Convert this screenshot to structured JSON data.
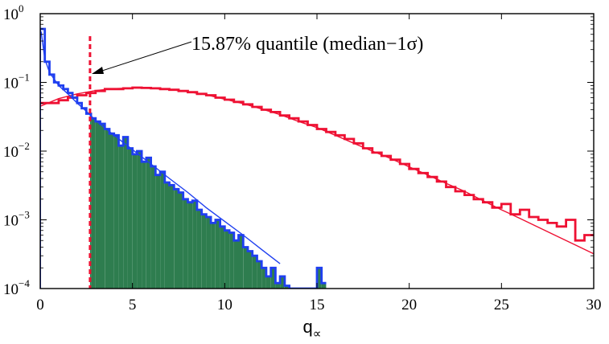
{
  "chart_data": {
    "type": "line",
    "title": "",
    "xlabel": "q",
    "xlabel_subscript": "∝",
    "ylabel": "",
    "xlim": [
      0,
      30
    ],
    "ylim": [
      0.0001,
      1
    ],
    "yscale": "log",
    "grid": false,
    "x_ticks": [
      0,
      5,
      10,
      15,
      20,
      25,
      30
    ],
    "x_tick_labels": [
      "0",
      "5",
      "10",
      "15",
      "20",
      "25",
      "30"
    ],
    "y_ticks": [
      0.0001,
      0.001,
      0.01,
      0.1,
      1
    ],
    "y_tick_labels": [
      {
        "base": "10",
        "exp": "−4"
      },
      {
        "base": "10",
        "exp": "−3"
      },
      {
        "base": "10",
        "exp": "−2"
      },
      {
        "base": "10",
        "exp": "−1"
      },
      {
        "base": "10",
        "exp": "0"
      }
    ],
    "colors": {
      "blue": "#1f3ff0",
      "red": "#ee1133",
      "fill": "#2e7d4f",
      "annotation": "#000000"
    },
    "quantile": {
      "x": 2.7,
      "label": "15.87% quantile (median−1σ)"
    },
    "series": [
      {
        "kind": "histogram",
        "color": "blue",
        "bin_width": 0.25,
        "x": [
          0.0,
          0.25,
          0.5,
          0.75,
          1.0,
          1.25,
          1.5,
          1.75,
          2.0,
          2.25,
          2.5,
          2.75,
          3.0,
          3.25,
          3.5,
          3.75,
          4.0,
          4.25,
          4.5,
          4.75,
          5.0,
          5.25,
          5.5,
          5.75,
          6.0,
          6.25,
          6.5,
          6.75,
          7.0,
          7.25,
          7.5,
          7.75,
          8.0,
          8.25,
          8.5,
          8.75,
          9.0,
          9.25,
          9.5,
          9.75,
          10.0,
          10.25,
          10.5,
          10.75,
          11.0,
          11.25,
          11.5,
          11.75,
          12.0,
          12.25,
          12.5,
          12.75,
          13.0,
          13.25,
          13.5,
          13.75,
          14.0,
          14.25,
          14.5,
          14.75,
          15.0,
          15.25
        ],
        "values": [
          0.6,
          0.2,
          0.13,
          0.1,
          0.09,
          0.08,
          0.07,
          0.06,
          0.05,
          0.042,
          0.035,
          0.03,
          0.027,
          0.025,
          0.021,
          0.018,
          0.017,
          0.012,
          0.016,
          0.011,
          0.009,
          0.01,
          0.007,
          0.008,
          0.006,
          0.0045,
          0.005,
          0.0035,
          0.0032,
          0.0028,
          0.0025,
          0.002,
          0.0018,
          0.0019,
          0.0014,
          0.0012,
          0.0011,
          0.0009,
          0.001,
          0.0008,
          0.0007,
          0.00065,
          0.0005,
          0.0006,
          0.0004,
          0.00035,
          0.0003,
          0.00025,
          0.0002,
          0.00015,
          0.0002,
          0.00012,
          0.00015,
          0.00011,
          0.0001,
          0.0001,
          0.0001,
          0.0001,
          0.0001,
          0.0001,
          0.0002,
          0.00012
        ]
      },
      {
        "kind": "histogram",
        "color": "red",
        "bin_width": 0.5,
        "x": [
          0.0,
          0.5,
          1.0,
          1.5,
          2.0,
          2.5,
          3.0,
          3.5,
          4.0,
          4.5,
          5.0,
          5.5,
          6.0,
          6.5,
          7.0,
          7.5,
          8.0,
          8.5,
          9.0,
          9.5,
          10.0,
          10.5,
          11.0,
          11.5,
          12.0,
          12.5,
          13.0,
          13.5,
          14.0,
          14.5,
          15.0,
          15.5,
          16.0,
          16.5,
          17.0,
          17.5,
          18.0,
          18.5,
          19.0,
          19.5,
          20.0,
          20.5,
          21.0,
          21.5,
          22.0,
          22.5,
          23.0,
          23.5,
          24.0,
          24.5,
          25.0,
          25.5,
          26.0,
          26.5,
          27.0,
          27.5,
          28.0,
          28.5,
          29.0,
          29.5
        ],
        "values": [
          0.05,
          0.05,
          0.055,
          0.06,
          0.065,
          0.07,
          0.075,
          0.08,
          0.08,
          0.082,
          0.084,
          0.083,
          0.082,
          0.08,
          0.078,
          0.075,
          0.072,
          0.068,
          0.065,
          0.06,
          0.056,
          0.052,
          0.048,
          0.044,
          0.04,
          0.037,
          0.033,
          0.03,
          0.027,
          0.024,
          0.021,
          0.019,
          0.017,
          0.015,
          0.013,
          0.011,
          0.0095,
          0.0085,
          0.0075,
          0.0065,
          0.0055,
          0.0048,
          0.0042,
          0.0036,
          0.003,
          0.0026,
          0.0023,
          0.002,
          0.0018,
          0.0015,
          0.0017,
          0.0012,
          0.0014,
          0.0011,
          0.001,
          0.0009,
          0.0008,
          0.001,
          0.0005,
          0.0006
        ]
      },
      {
        "kind": "curve",
        "color": "blue",
        "x": [
          0.05,
          0.25,
          0.5,
          1.0,
          1.5,
          2.0,
          2.5,
          3,
          4,
          5,
          6,
          7,
          8,
          9,
          10,
          11,
          12,
          13
        ],
        "values": [
          0.55,
          0.22,
          0.14,
          0.09,
          0.068,
          0.05,
          0.038,
          0.028,
          0.017,
          0.0105,
          0.0065,
          0.004,
          0.0025,
          0.0015,
          0.00095,
          0.0006,
          0.00037,
          0.00023
        ]
      },
      {
        "kind": "curve",
        "color": "red",
        "x": [
          0,
          1,
          2,
          3,
          4,
          5,
          6,
          7,
          8,
          9,
          10,
          11,
          12,
          13,
          14,
          15,
          16,
          17,
          18,
          19,
          20,
          21,
          22,
          23,
          24,
          25,
          26,
          27,
          28,
          29,
          30
        ],
        "values": [
          0.045,
          0.058,
          0.068,
          0.076,
          0.081,
          0.083,
          0.082,
          0.079,
          0.073,
          0.066,
          0.057,
          0.049,
          0.041,
          0.034,
          0.027,
          0.022,
          0.017,
          0.013,
          0.01,
          0.0078,
          0.0059,
          0.0045,
          0.0034,
          0.0026,
          0.0019,
          0.0014,
          0.00105,
          0.00078,
          0.00058,
          0.00043,
          0.00032
        ]
      }
    ]
  }
}
